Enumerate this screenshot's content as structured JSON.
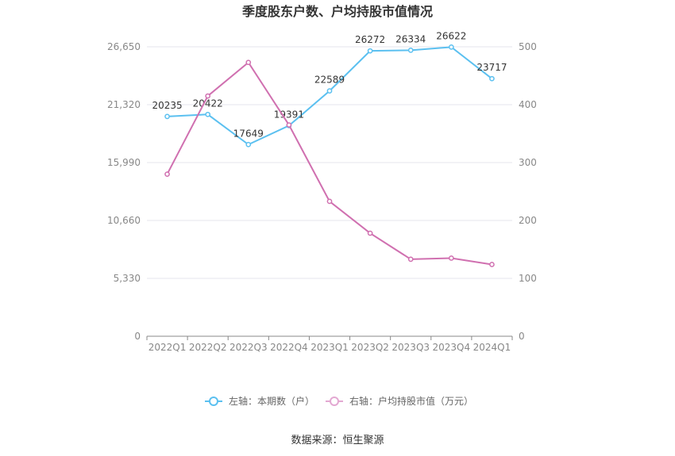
{
  "chart_data": {
    "type": "line",
    "title": "季度股东户数、户均持股市值情况",
    "categories": [
      "2022Q1",
      "2022Q2",
      "2022Q3",
      "2022Q4",
      "2023Q1",
      "2023Q2",
      "2023Q3",
      "2023Q4",
      "2024Q1"
    ],
    "left_axis": {
      "ticks": [
        "0",
        "5,330",
        "10,660",
        "15,990",
        "21,320",
        "26,650"
      ],
      "ylim": [
        0,
        26650
      ]
    },
    "right_axis": {
      "ticks": [
        "0",
        "100",
        "200",
        "300",
        "400",
        "500"
      ],
      "ylim": [
        0,
        500
      ]
    },
    "series": [
      {
        "name": "左轴：本期数（户）",
        "axis": "left",
        "color": "#5bc0f0",
        "values": [
          20235,
          20422,
          17649,
          19391,
          22589,
          26272,
          26334,
          26622,
          23717
        ],
        "labels": [
          "20235",
          "20422",
          "17649",
          "19391",
          "22589",
          "26272",
          "26334",
          "26622",
          "23717"
        ]
      },
      {
        "name": "右轴：户均持股市值（万元）",
        "axis": "right",
        "color": "#d070b0",
        "values": [
          280,
          415,
          473,
          365,
          233,
          178,
          133,
          135,
          124
        ]
      }
    ],
    "grid": true,
    "legend": "bottom-center",
    "source": "数据来源：恒生聚源"
  }
}
